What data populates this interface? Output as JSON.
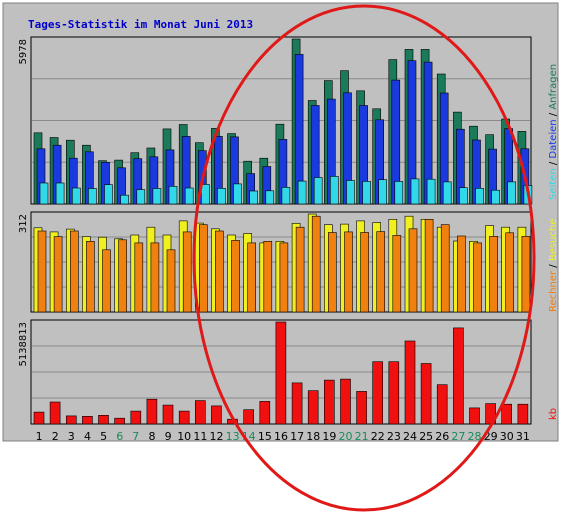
{
  "chart_data": [
    {
      "type": "bar",
      "title": "Tages-Statistik im Monat Juni 2013",
      "categories": [
        "1",
        "2",
        "3",
        "4",
        "5",
        "6",
        "7",
        "8",
        "9",
        "10",
        "11",
        "12",
        "13",
        "14",
        "15",
        "16",
        "17",
        "18",
        "19",
        "20",
        "21",
        "22",
        "23",
        "24",
        "25",
        "26",
        "27",
        "28",
        "29",
        "30",
        "31"
      ],
      "weekend_days": [
        "6",
        "7",
        "13",
        "14",
        "20",
        "21",
        "27",
        "28"
      ],
      "ymax_label": "5978",
      "ylim": [
        0,
        5978
      ],
      "legend": [
        "Anfragen",
        "Dateien",
        "Seiten"
      ],
      "series": [
        {
          "name": "Anfragen",
          "color": "#1a7a5a",
          "values": [
            2580,
            2410,
            2310,
            2130,
            1570,
            1590,
            1860,
            2030,
            2720,
            2880,
            2220,
            2740,
            2550,
            1550,
            1660,
            2890,
            5978,
            3750,
            4470,
            4830,
            4100,
            3450,
            5230,
            5600,
            5600,
            4710,
            3330,
            2820,
            2510,
            3080,
            2630
          ]
        },
        {
          "name": "Dateien",
          "color": "#1a3ae0",
          "values": [
            2000,
            2130,
            1660,
            1890,
            1510,
            1310,
            1640,
            1710,
            1960,
            2450,
            1930,
            2450,
            2430,
            1100,
            1360,
            2340,
            5420,
            3570,
            3800,
            4030,
            3570,
            3050,
            4490,
            5190,
            5140,
            4020,
            2710,
            2320,
            1990,
            2730,
            2000
          ]
        },
        {
          "name": "Seiten",
          "color": "#30d8e8",
          "values": [
            760,
            760,
            580,
            560,
            700,
            320,
            520,
            560,
            640,
            580,
            710,
            570,
            730,
            470,
            480,
            600,
            830,
            960,
            1000,
            850,
            820,
            880,
            820,
            910,
            900,
            800,
            590,
            570,
            500,
            800,
            670
          ]
        }
      ]
    },
    {
      "type": "bar",
      "ymax_label": "312",
      "ylim": [
        0,
        312
      ],
      "legend": [
        "Besuche",
        "Rechner"
      ],
      "series": [
        {
          "name": "Besuche",
          "color": "#f0f020",
          "values": [
            268,
            255,
            264,
            240,
            238,
            233,
            245,
            270,
            245,
            290,
            283,
            265,
            245,
            250,
            220,
            225,
            282,
            312,
            278,
            280,
            290,
            285,
            295,
            305,
            295,
            270,
            226,
            225,
            275,
            270,
            270
          ]
        },
        {
          "name": "Rechner",
          "color": "#f08010",
          "values": [
            258,
            240,
            258,
            225,
            198,
            230,
            220,
            220,
            198,
            255,
            278,
            258,
            228,
            220,
            225,
            220,
            270,
            305,
            253,
            255,
            253,
            256,
            244,
            265,
            295,
            278,
            242,
            220,
            241,
            252,
            241
          ]
        }
      ]
    },
    {
      "type": "bar",
      "ymax_label": "5138813",
      "ylim": [
        0,
        5138813
      ],
      "legend": [
        "kb"
      ],
      "series": [
        {
          "name": "kb",
          "color": "#f01010",
          "values": [
            600000,
            1110000,
            410000,
            390000,
            440000,
            290000,
            650000,
            1250000,
            950000,
            650000,
            1180000,
            910000,
            240000,
            720000,
            1140000,
            5138813,
            2070000,
            1680000,
            2210000,
            2260000,
            1640000,
            3140000,
            3140000,
            4180000,
            3050000,
            1980000,
            4840000,
            810000,
            1030000,
            1000000,
            1000000
          ]
        }
      ]
    }
  ]
}
